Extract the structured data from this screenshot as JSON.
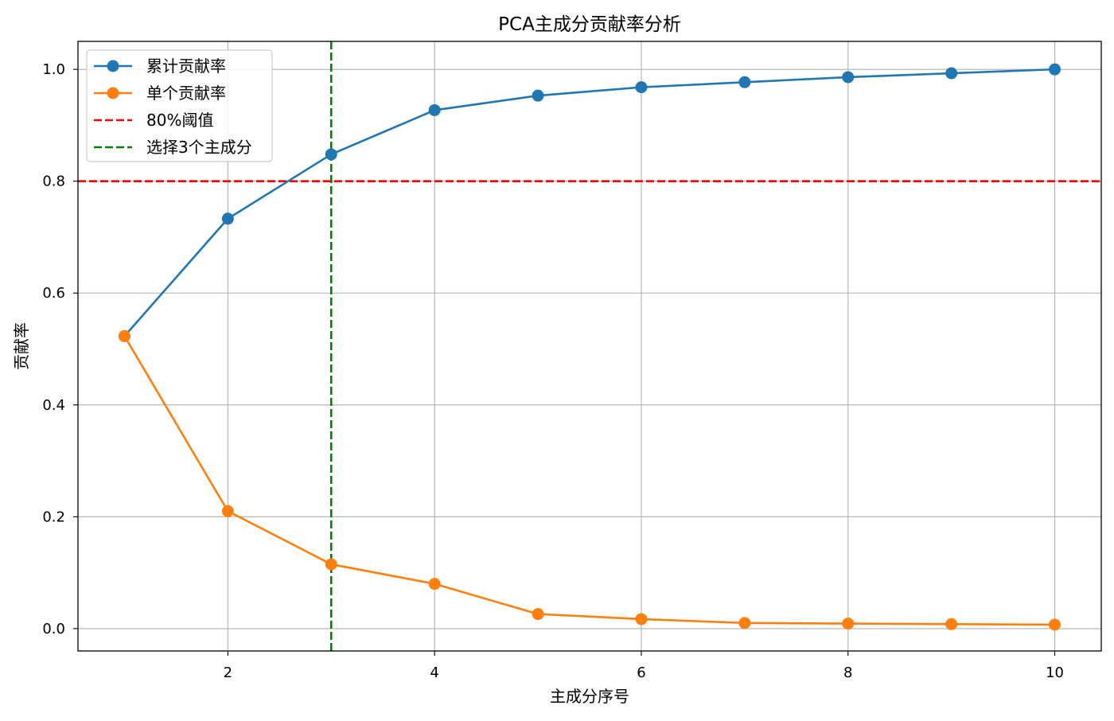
{
  "chart_data": {
    "type": "line",
    "title": "PCA主成分贡献率分析",
    "xlabel": "主成分序号",
    "ylabel": "贡献率",
    "xlim": [
      0.55,
      10.45
    ],
    "ylim": [
      -0.04,
      1.05
    ],
    "xticks": [
      2,
      4,
      6,
      8,
      10
    ],
    "xtick_labels": [
      "2",
      "4",
      "6",
      "8",
      "10"
    ],
    "yticks": [
      0.0,
      0.2,
      0.4,
      0.6,
      0.8,
      1.0
    ],
    "ytick_labels": [
      "0.0",
      "0.2",
      "0.4",
      "0.6",
      "0.8",
      "1.0"
    ],
    "grid": true,
    "legend_position": "top-left",
    "x": [
      1,
      2,
      3,
      4,
      5,
      6,
      7,
      8,
      9,
      10
    ],
    "series": [
      {
        "name": "累计贡献率",
        "color": "#1f77b4",
        "values": [
          0.523,
          0.733,
          0.848,
          0.927,
          0.953,
          0.968,
          0.977,
          0.986,
          0.993,
          1.0
        ]
      },
      {
        "name": "单个贡献率",
        "color": "#ff7f0e",
        "values": [
          0.523,
          0.21,
          0.115,
          0.08,
          0.026,
          0.017,
          0.01,
          0.009,
          0.008,
          0.007
        ]
      }
    ],
    "reference_lines": [
      {
        "name": "80%阈值",
        "orientation": "horizontal",
        "value": 0.8,
        "color": "#ff0000",
        "style": "dashed"
      },
      {
        "name": "选择3个主成分",
        "orientation": "vertical",
        "value": 3,
        "color": "#008000",
        "style": "dashed"
      }
    ]
  }
}
